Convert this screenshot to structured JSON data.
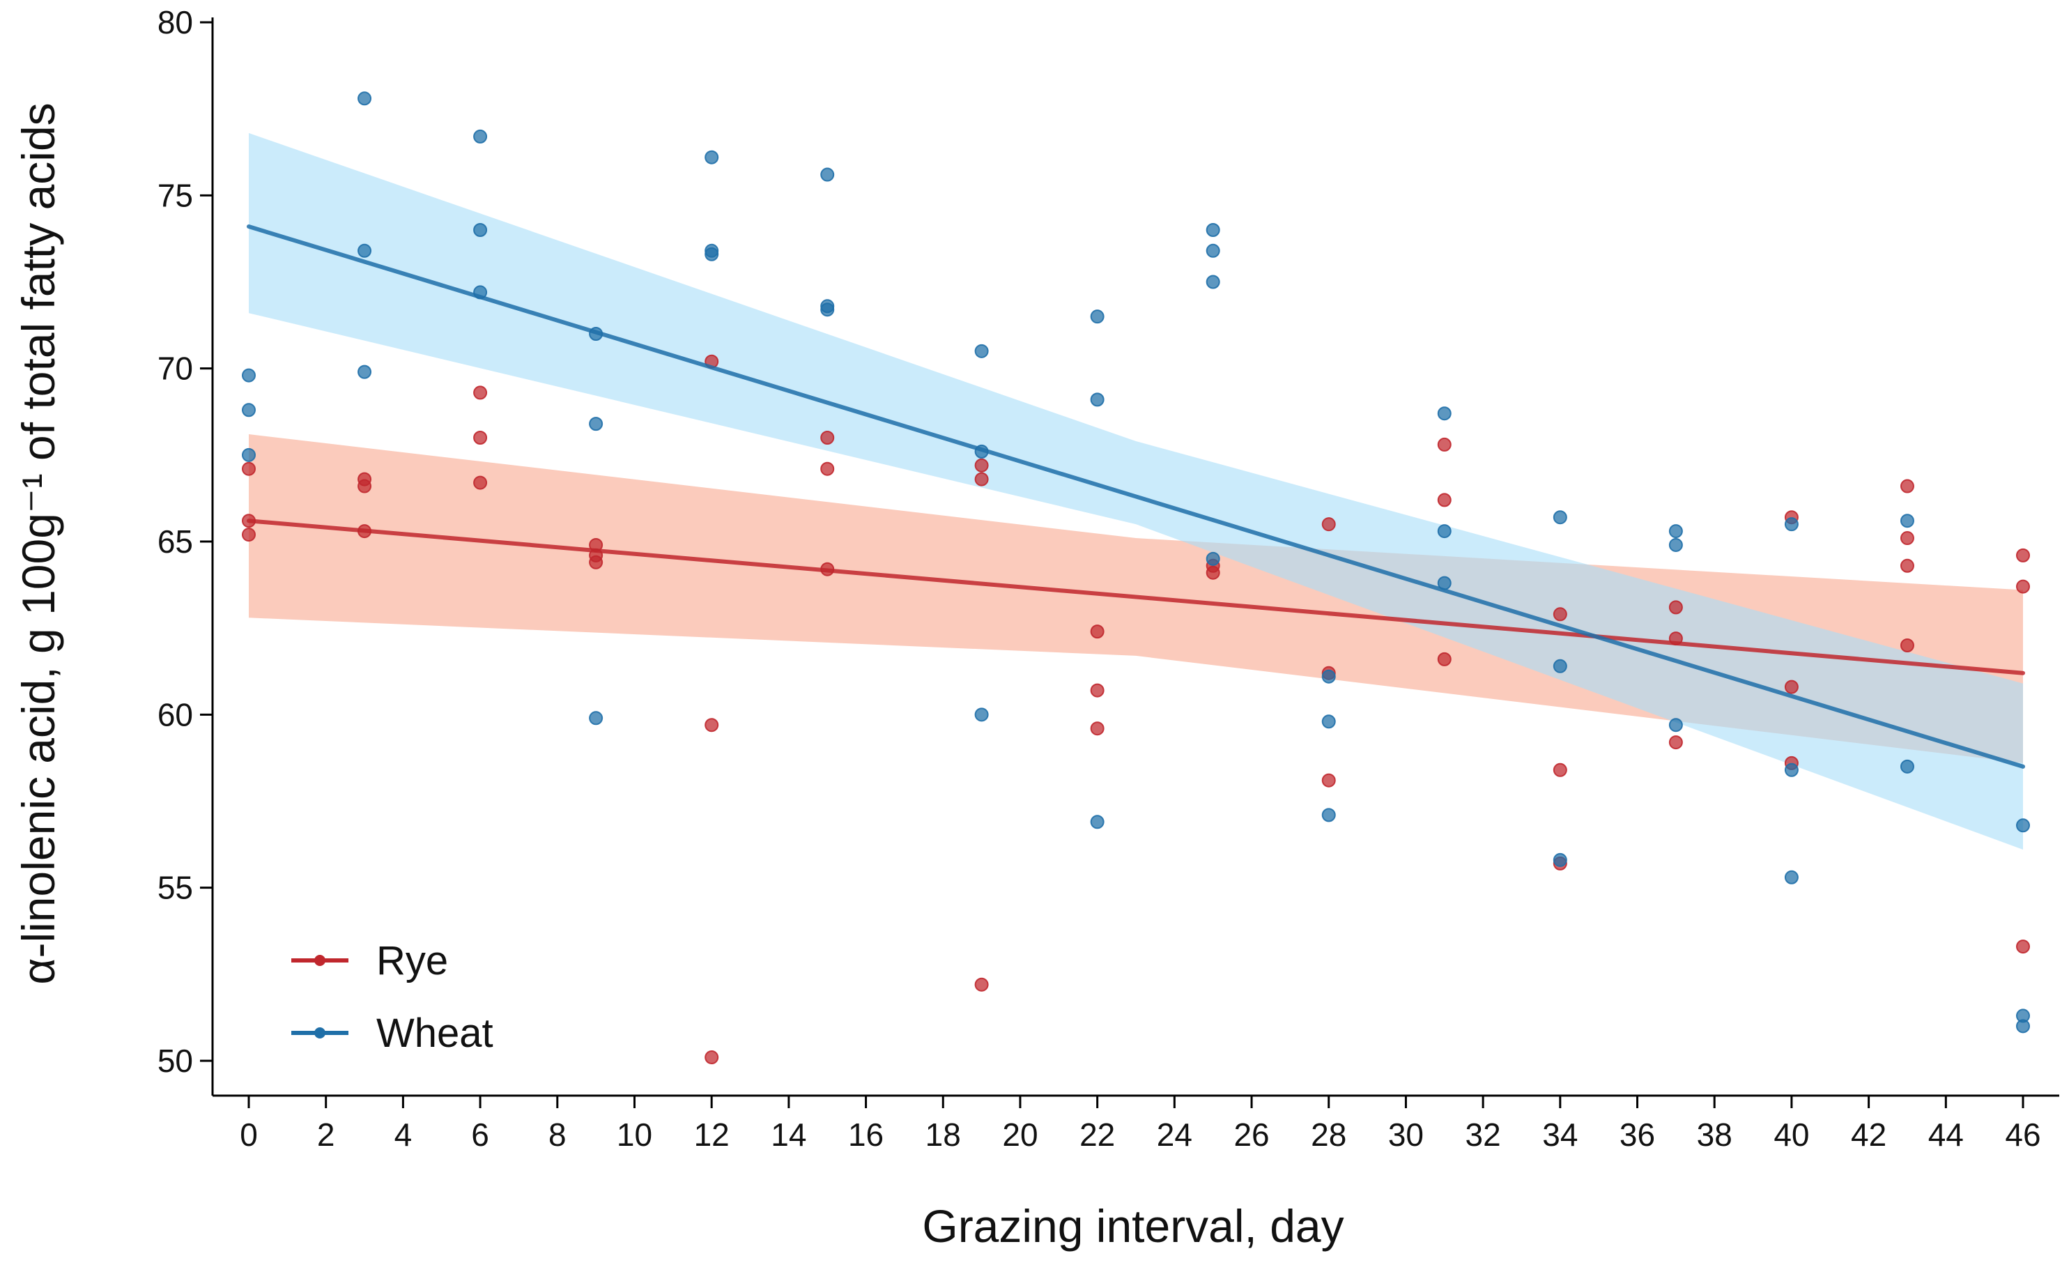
{
  "chart_data": {
    "type": "scatter",
    "xlabel": "Grazing interval, day",
    "ylabel": "α-linolenic acid, g 100g⁻¹ of total fatty acids",
    "xlim": [
      -1,
      47
    ],
    "ylim": [
      49,
      80
    ],
    "xticks": [
      0,
      2,
      4,
      6,
      8,
      10,
      12,
      14,
      16,
      18,
      20,
      22,
      24,
      26,
      28,
      30,
      32,
      34,
      36,
      38,
      40,
      42,
      44,
      46
    ],
    "yticks": [
      50,
      55,
      60,
      65,
      70,
      75,
      80
    ],
    "grid": false,
    "legend_position": "bottom-left",
    "series": [
      {
        "name": "Rye",
        "color": "#c0272d",
        "ribbon_color": "#f9a88f",
        "fit": {
          "x": [
            0,
            46
          ],
          "y": [
            65.6,
            61.2
          ]
        },
        "ci_lower": [
          [
            0,
            62.8
          ],
          [
            23,
            61.7
          ],
          [
            46,
            58.6
          ]
        ],
        "ci_upper": [
          [
            0,
            68.1
          ],
          [
            23,
            65.1
          ],
          [
            46,
            63.6
          ]
        ],
        "points": [
          [
            0,
            67.1
          ],
          [
            0,
            65.6
          ],
          [
            0,
            65.2
          ],
          [
            3,
            66.8
          ],
          [
            3,
            66.6
          ],
          [
            3,
            65.3
          ],
          [
            6,
            69.3
          ],
          [
            6,
            68.0
          ],
          [
            6,
            66.7
          ],
          [
            9,
            64.9
          ],
          [
            9,
            64.6
          ],
          [
            9,
            64.4
          ],
          [
            12,
            70.2
          ],
          [
            12,
            59.7
          ],
          [
            12,
            50.1
          ],
          [
            15,
            68.0
          ],
          [
            15,
            67.1
          ],
          [
            15,
            64.2
          ],
          [
            19,
            67.2
          ],
          [
            19,
            66.8
          ],
          [
            19,
            52.2
          ],
          [
            22,
            62.4
          ],
          [
            22,
            60.7
          ],
          [
            22,
            59.6
          ],
          [
            25,
            64.3
          ],
          [
            25,
            64.1
          ],
          [
            28,
            65.5
          ],
          [
            28,
            61.2
          ],
          [
            28,
            58.1
          ],
          [
            31,
            67.8
          ],
          [
            31,
            66.2
          ],
          [
            31,
            61.6
          ],
          [
            34,
            62.9
          ],
          [
            34,
            58.4
          ],
          [
            34,
            55.7
          ],
          [
            37,
            63.1
          ],
          [
            37,
            62.2
          ],
          [
            37,
            59.2
          ],
          [
            40,
            65.7
          ],
          [
            40,
            60.8
          ],
          [
            40,
            58.6
          ],
          [
            43,
            66.6
          ],
          [
            43,
            65.1
          ],
          [
            43,
            64.3
          ],
          [
            43,
            62.0
          ],
          [
            46,
            64.6
          ],
          [
            46,
            63.7
          ],
          [
            46,
            53.3
          ]
        ]
      },
      {
        "name": "Wheat",
        "color": "#1f6fa8",
        "ribbon_color": "#a8def8",
        "fit": {
          "x": [
            0,
            46
          ],
          "y": [
            74.1,
            58.5
          ]
        },
        "ci_lower": [
          [
            0,
            71.6
          ],
          [
            23,
            65.5
          ],
          [
            46,
            56.1
          ]
        ],
        "ci_upper": [
          [
            0,
            76.8
          ],
          [
            23,
            67.9
          ],
          [
            46,
            60.9
          ]
        ],
        "points": [
          [
            0,
            69.8
          ],
          [
            0,
            68.8
          ],
          [
            0,
            67.5
          ],
          [
            3,
            77.8
          ],
          [
            3,
            73.4
          ],
          [
            3,
            69.9
          ],
          [
            6,
            76.7
          ],
          [
            6,
            74.0
          ],
          [
            6,
            72.2
          ],
          [
            9,
            71.0
          ],
          [
            9,
            68.4
          ],
          [
            9,
            59.9
          ],
          [
            12,
            76.1
          ],
          [
            12,
            73.4
          ],
          [
            12,
            73.3
          ],
          [
            15,
            75.6
          ],
          [
            15,
            71.8
          ],
          [
            15,
            71.7
          ],
          [
            19,
            70.5
          ],
          [
            19,
            67.6
          ],
          [
            19,
            60.0
          ],
          [
            22,
            71.5
          ],
          [
            22,
            69.1
          ],
          [
            22,
            56.9
          ],
          [
            25,
            74.0
          ],
          [
            25,
            73.4
          ],
          [
            25,
            72.5
          ],
          [
            25,
            64.5
          ],
          [
            28,
            61.1
          ],
          [
            28,
            59.8
          ],
          [
            28,
            57.1
          ],
          [
            31,
            68.7
          ],
          [
            31,
            65.3
          ],
          [
            31,
            63.8
          ],
          [
            34,
            65.7
          ],
          [
            34,
            61.4
          ],
          [
            34,
            55.8
          ],
          [
            37,
            65.3
          ],
          [
            37,
            64.9
          ],
          [
            37,
            59.7
          ],
          [
            40,
            65.5
          ],
          [
            40,
            58.4
          ],
          [
            40,
            55.3
          ],
          [
            43,
            65.6
          ],
          [
            43,
            58.5
          ],
          [
            46,
            56.8
          ],
          [
            46,
            51.3
          ],
          [
            46,
            51.0
          ]
        ]
      }
    ]
  }
}
